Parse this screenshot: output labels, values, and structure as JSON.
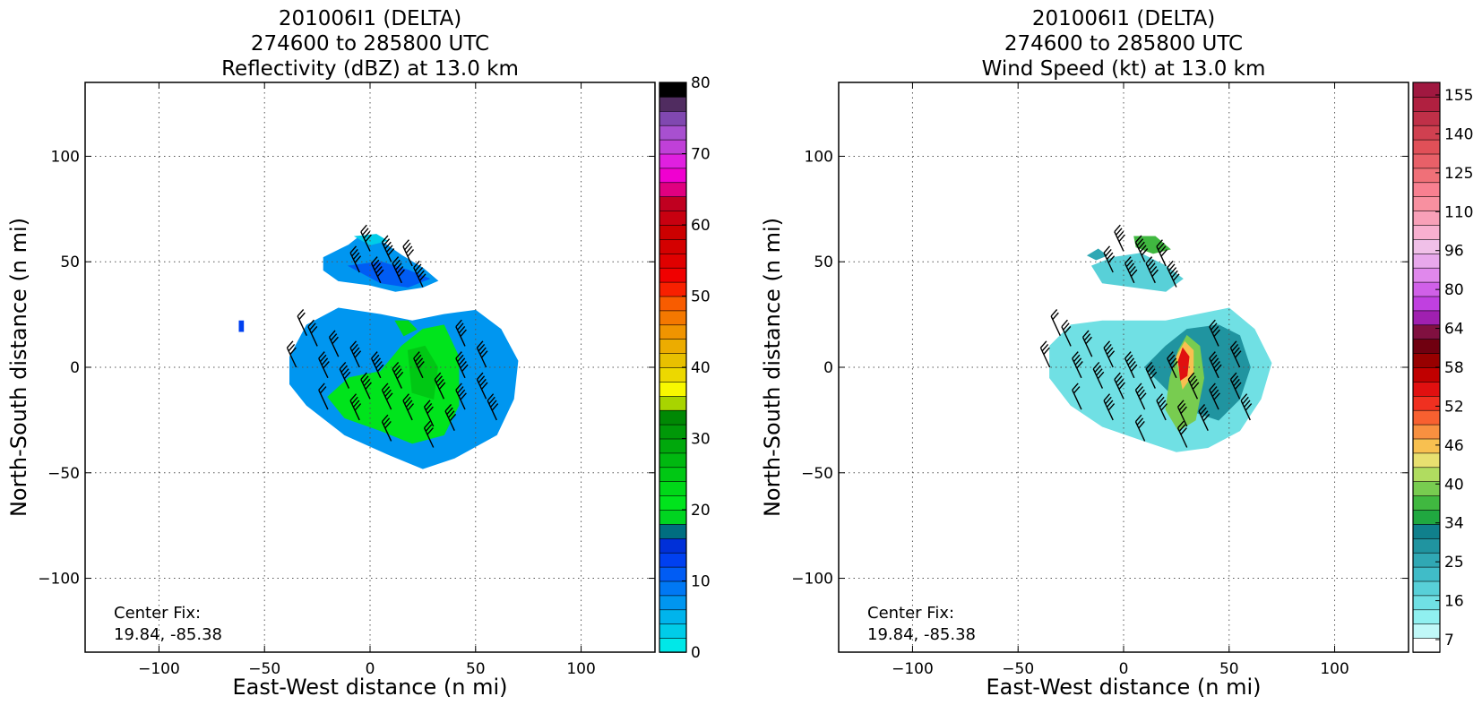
{
  "chart_data": [
    {
      "type": "heatmap",
      "title": [
        "201006I1 (DELTA)",
        "274600 to 285800 UTC",
        "Reflectivity (dBZ) at 13.0 km"
      ],
      "xlabel": "East-West distance (n mi)",
      "ylabel": "North-South distance (n mi)",
      "xlim": [
        -135,
        135
      ],
      "ylim": [
        -135,
        135
      ],
      "xticks": [
        -100,
        -50,
        0,
        50,
        100
      ],
      "yticks": [
        -100,
        -50,
        0,
        50,
        100
      ],
      "grid": true,
      "annotation": [
        "Center Fix:",
        "19.84, -85.38"
      ],
      "colorbar": {
        "label_values": [
          0,
          10,
          20,
          30,
          40,
          50,
          60,
          70,
          80
        ],
        "label_texts": [
          "0",
          "10",
          "20",
          "30",
          "40",
          "50",
          "60",
          "70",
          "80"
        ],
        "colors": [
          "#00e8e8",
          "#00cce8",
          "#00b4ec",
          "#0096f0",
          "#0078f4",
          "#005cf4",
          "#0040f0",
          "#0030d8",
          "#006e80",
          "#00d420",
          "#00e41c",
          "#00d818",
          "#00c814",
          "#00b810",
          "#00a80c",
          "#009808",
          "#008804",
          "#a8d400",
          "#f8f800",
          "#ecd800",
          "#e8c000",
          "#ecac00",
          "#f09400",
          "#f47800",
          "#f85c00",
          "#f82000",
          "#f00000",
          "#e00000",
          "#d40000",
          "#cc0000",
          "#c80010",
          "#c00020",
          "#e00080",
          "#f000d0",
          "#e020e0",
          "#c040d8",
          "#a850d0",
          "#8048b0",
          "#502c60",
          "#000000"
        ]
      },
      "regions": [
        {
          "level": 3,
          "polygon": [
            [
              -38,
              5
            ],
            [
              -30,
              20
            ],
            [
              -15,
              28
            ],
            [
              5,
              25
            ],
            [
              20,
              22
            ],
            [
              35,
              25
            ],
            [
              50,
              27
            ],
            [
              62,
              18
            ],
            [
              70,
              3
            ],
            [
              68,
              -15
            ],
            [
              60,
              -32
            ],
            [
              40,
              -43
            ],
            [
              25,
              -48
            ],
            [
              8,
              -41
            ],
            [
              -12,
              -32
            ],
            [
              -30,
              -18
            ],
            [
              -38,
              -8
            ]
          ]
        },
        {
          "level": 10,
          "polygon": [
            [
              -10,
              -5
            ],
            [
              5,
              -2
            ],
            [
              15,
              10
            ],
            [
              25,
              18
            ],
            [
              35,
              20
            ],
            [
              42,
              5
            ],
            [
              42,
              -18
            ],
            [
              35,
              -32
            ],
            [
              20,
              -36
            ],
            [
              5,
              -30
            ],
            [
              -12,
              -24
            ],
            [
              -20,
              -14
            ]
          ]
        },
        {
          "level": 12,
          "polygon": [
            [
              18,
              8
            ],
            [
              26,
              10
            ],
            [
              32,
              0
            ],
            [
              30,
              -15
            ],
            [
              20,
              -12
            ]
          ]
        },
        {
          "level": 11,
          "polygon": [
            [
              12,
              22
            ],
            [
              18,
              22
            ],
            [
              22,
              18
            ],
            [
              16,
              15
            ]
          ]
        },
        {
          "level": 3,
          "polygon": [
            [
              -22,
              52
            ],
            [
              -10,
              58
            ],
            [
              -5,
              62
            ],
            [
              5,
              60
            ],
            [
              15,
              53
            ],
            [
              25,
              47
            ],
            [
              32,
              41
            ],
            [
              25,
              38
            ],
            [
              12,
              36
            ],
            [
              0,
              39
            ],
            [
              -15,
              41
            ],
            [
              -22,
              46
            ]
          ]
        },
        {
          "level": 5,
          "polygon": [
            [
              -10,
              48
            ],
            [
              5,
              50
            ],
            [
              18,
              46
            ],
            [
              28,
              42
            ],
            [
              18,
              38
            ],
            [
              5,
              40
            ]
          ]
        },
        {
          "level": 1,
          "polygon": [
            [
              -7,
              62
            ],
            [
              3,
              63
            ],
            [
              8,
              60
            ],
            [
              0,
              58
            ]
          ]
        },
        {
          "level": 6,
          "polygon": [
            [
              -62,
              22
            ],
            [
              -60,
              22
            ],
            [
              -60,
              17
            ],
            [
              -62,
              17
            ]
          ]
        }
      ],
      "barbs": [
        [
          -20,
          -5,
          35
        ],
        [
          -10,
          -10,
          40
        ],
        [
          0,
          -15,
          35
        ],
        [
          10,
          -20,
          40
        ],
        [
          20,
          -25,
          35
        ],
        [
          30,
          -28,
          30
        ],
        [
          -25,
          10,
          25
        ],
        [
          -15,
          5,
          30
        ],
        [
          -5,
          0,
          35
        ],
        [
          5,
          -5,
          45
        ],
        [
          15,
          -10,
          40
        ],
        [
          25,
          -5,
          40
        ],
        [
          35,
          -15,
          40
        ],
        [
          40,
          -30,
          35
        ],
        [
          45,
          -20,
          40
        ],
        [
          45,
          -5,
          45
        ],
        [
          45,
          10,
          40
        ],
        [
          55,
          0,
          40
        ],
        [
          55,
          -15,
          40
        ],
        [
          60,
          -25,
          35
        ],
        [
          0,
          55,
          40
        ],
        [
          10,
          50,
          45
        ],
        [
          20,
          48,
          40
        ],
        [
          -5,
          45,
          40
        ],
        [
          5,
          40,
          45
        ],
        [
          15,
          40,
          50
        ],
        [
          25,
          38,
          45
        ],
        [
          -30,
          15,
          20
        ],
        [
          -35,
          0,
          25
        ],
        [
          -20,
          -20,
          20
        ],
        [
          -5,
          -25,
          35
        ],
        [
          10,
          -35,
          30
        ],
        [
          30,
          -38,
          30
        ]
      ]
    },
    {
      "type": "heatmap",
      "title": [
        "201006I1 (DELTA)",
        "274600 to 285800 UTC",
        "Wind Speed (kt) at 13.0 km"
      ],
      "xlabel": "East-West distance (n mi)",
      "ylabel": "North-South distance (n mi)",
      "xlim": [
        -135,
        135
      ],
      "ylim": [
        -135,
        135
      ],
      "xticks": [
        -100,
        -50,
        0,
        50,
        100
      ],
      "yticks": [
        -100,
        -50,
        0,
        50,
        100
      ],
      "grid": true,
      "annotation": [
        "Center Fix:",
        "19.84, -85.38"
      ],
      "colorbar": {
        "label_values": [
          7,
          16,
          25,
          34,
          40,
          46,
          52,
          58,
          64,
          80,
          96,
          110,
          125,
          140,
          155
        ],
        "label_texts": [
          "7",
          "16",
          "25",
          "34",
          "40",
          "46",
          "52",
          "58",
          "64",
          "80",
          "96",
          "110",
          "125",
          "140",
          "155"
        ],
        "colors": [
          "#ffffff",
          "#c0f8f8",
          "#90f0f0",
          "#70e0e4",
          "#58d0d8",
          "#40bcc8",
          "#30a8b4",
          "#2094a0",
          "#10808c",
          "#20a840",
          "#40b840",
          "#78cc50",
          "#b0dc60",
          "#e8e070",
          "#f8c050",
          "#f89040",
          "#f86030",
          "#f03020",
          "#e01010",
          "#c00000",
          "#980000",
          "#700010",
          "#801040",
          "#a020b0",
          "#c040e0",
          "#d060e8",
          "#e088ec",
          "#e8a8ec",
          "#f0c0e8",
          "#f8b0d0",
          "#f8a0b8",
          "#f890a0",
          "#f88090",
          "#f07078",
          "#e86068",
          "#e05058",
          "#d04050",
          "#c03048",
          "#b02040",
          "#a01840"
        ]
      },
      "regions": [
        {
          "level": 3,
          "polygon": [
            [
              -35,
              10
            ],
            [
              -25,
              20
            ],
            [
              -10,
              22
            ],
            [
              5,
              22
            ],
            [
              20,
              22
            ],
            [
              35,
              25
            ],
            [
              50,
              28
            ],
            [
              62,
              18
            ],
            [
              70,
              2
            ],
            [
              65,
              -15
            ],
            [
              55,
              -30
            ],
            [
              40,
              -38
            ],
            [
              25,
              -40
            ],
            [
              10,
              -35
            ],
            [
              -10,
              -28
            ],
            [
              -25,
              -18
            ],
            [
              -35,
              -5
            ]
          ]
        },
        {
          "level": 7,
          "polygon": [
            [
              10,
              0
            ],
            [
              20,
              -10
            ],
            [
              30,
              -20
            ],
            [
              45,
              -25
            ],
            [
              55,
              -15
            ],
            [
              60,
              0
            ],
            [
              55,
              15
            ],
            [
              45,
              20
            ],
            [
              30,
              18
            ],
            [
              20,
              10
            ]
          ]
        },
        {
          "level": 11,
          "polygon": [
            [
              22,
              -5
            ],
            [
              26,
              8
            ],
            [
              30,
              15
            ],
            [
              36,
              10
            ],
            [
              38,
              -5
            ],
            [
              34,
              -25
            ],
            [
              26,
              -30
            ],
            [
              20,
              -20
            ]
          ]
        },
        {
          "level": 14,
          "polygon": [
            [
              25,
              5
            ],
            [
              29,
              12
            ],
            [
              33,
              8
            ],
            [
              33,
              -3
            ],
            [
              28,
              -10
            ]
          ]
        },
        {
          "level": 18,
          "polygon": [
            [
              26,
              3
            ],
            [
              28,
              9
            ],
            [
              31,
              5
            ],
            [
              30,
              -4
            ],
            [
              27,
              -6
            ]
          ]
        },
        {
          "level": 4,
          "polygon": [
            [
              -15,
              48
            ],
            [
              -5,
              52
            ],
            [
              8,
              54
            ],
            [
              20,
              48
            ],
            [
              28,
              42
            ],
            [
              20,
              36
            ],
            [
              5,
              38
            ],
            [
              -10,
              40
            ]
          ]
        },
        {
          "level": 10,
          "polygon": [
            [
              5,
              62
            ],
            [
              15,
              62
            ],
            [
              22,
              56
            ],
            [
              14,
              54
            ],
            [
              6,
              57
            ]
          ]
        },
        {
          "level": 6,
          "polygon": [
            [
              -17,
              53
            ],
            [
              -12,
              56
            ],
            [
              -8,
              53
            ],
            [
              -13,
              51
            ]
          ]
        }
      ],
      "barbs": [
        [
          -20,
          -5,
          35
        ],
        [
          -10,
          -10,
          40
        ],
        [
          0,
          -15,
          35
        ],
        [
          10,
          -20,
          40
        ],
        [
          20,
          -25,
          35
        ],
        [
          30,
          -28,
          30
        ],
        [
          -25,
          10,
          25
        ],
        [
          -15,
          5,
          30
        ],
        [
          -5,
          0,
          35
        ],
        [
          5,
          -5,
          45
        ],
        [
          15,
          -10,
          40
        ],
        [
          25,
          -5,
          40
        ],
        [
          35,
          -15,
          40
        ],
        [
          40,
          -30,
          35
        ],
        [
          45,
          -20,
          40
        ],
        [
          45,
          -5,
          45
        ],
        [
          45,
          10,
          40
        ],
        [
          55,
          0,
          40
        ],
        [
          55,
          -15,
          40
        ],
        [
          60,
          -25,
          35
        ],
        [
          0,
          55,
          40
        ],
        [
          10,
          50,
          45
        ],
        [
          20,
          48,
          40
        ],
        [
          -5,
          45,
          40
        ],
        [
          5,
          40,
          45
        ],
        [
          15,
          40,
          50
        ],
        [
          25,
          38,
          45
        ],
        [
          -30,
          15,
          20
        ],
        [
          -35,
          0,
          25
        ],
        [
          -20,
          -20,
          20
        ],
        [
          -5,
          -25,
          35
        ],
        [
          10,
          -35,
          30
        ],
        [
          30,
          -38,
          30
        ]
      ]
    }
  ]
}
